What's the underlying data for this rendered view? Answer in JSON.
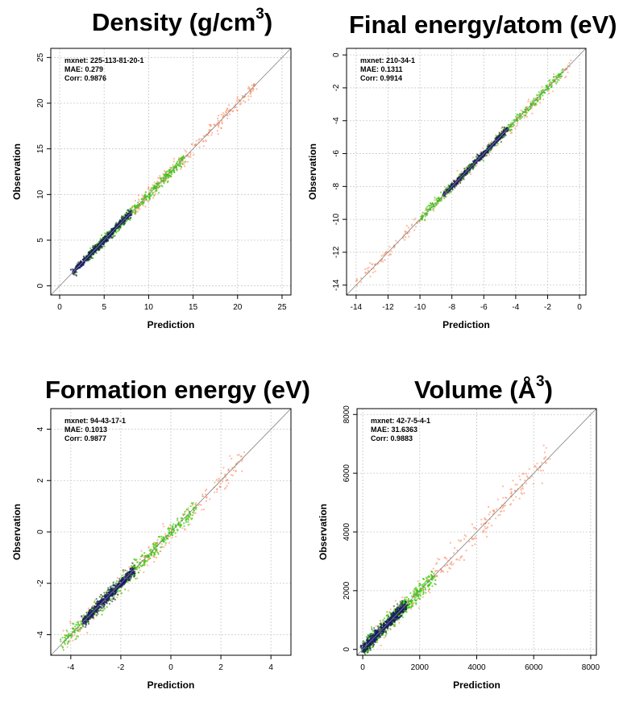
{
  "figure": {
    "panels": [
      {
        "title_main": "Density (g/cm",
        "title_sup": "3",
        "title_tail": ")"
      },
      {
        "title_main": "Final energy/atom (eV)",
        "title_sup": "",
        "title_tail": ""
      },
      {
        "title_main": "Formation energy (eV)",
        "title_sup": "",
        "title_tail": ""
      },
      {
        "title_main": "Volume (Å",
        "title_sup": "3",
        "title_tail": ")"
      }
    ]
  },
  "colors": {
    "density_dense": "#1a1a6e",
    "mid": "#0a3a0a",
    "green": "#33cc00",
    "orange": "#ff7f50",
    "grid": "#c8c8c8",
    "diagonal": "#808080"
  },
  "chart_data": [
    {
      "type": "scatter",
      "title": "Density (g/cm3)",
      "xlabel": "Prediction",
      "ylabel": "Observation",
      "xlim": [
        -1,
        26
      ],
      "ylim": [
        -1,
        26
      ],
      "xticks": [
        0,
        5,
        10,
        15,
        20,
        25
      ],
      "yticks": [
        0,
        5,
        10,
        15,
        20,
        25
      ],
      "grid": true,
      "diagonal_line": "y = x",
      "annotation": [
        "mxnet: 225-113-81-20-1",
        "MAE: 0.279",
        "Corr: 0.9876"
      ],
      "point_cloud": {
        "range": [
          0.5,
          23
        ],
        "core_range": [
          1.5,
          8
        ],
        "green_range": [
          3,
          14
        ],
        "orange_range": [
          8,
          22
        ],
        "spread": 0.025
      }
    },
    {
      "type": "scatter",
      "title": "Final energy/atom (eV)",
      "xlabel": "Prediction",
      "ylabel": "Observation",
      "xlim": [
        -14.6,
        0.4
      ],
      "ylim": [
        -14.6,
        0.4
      ],
      "xticks": [
        -14,
        -12,
        -10,
        -8,
        -6,
        -4,
        -2,
        0
      ],
      "yticks": [
        -14,
        -12,
        -10,
        -8,
        -6,
        -4,
        -2,
        0
      ],
      "grid": true,
      "diagonal_line": "y = x",
      "annotation": [
        "mxnet: 210-34-1",
        "MAE: 0.1311",
        "Corr: 0.9914"
      ],
      "point_cloud": {
        "range": [
          -14,
          0
        ],
        "core_range": [
          -8.5,
          -4.5
        ],
        "green_range": [
          -10,
          -1
        ],
        "orange_range": [
          -14,
          -0.5
        ],
        "spread": 0.02
      }
    },
    {
      "type": "scatter",
      "title": "Formation energy (eV)",
      "xlabel": "Prediction",
      "ylabel": "Observation",
      "xlim": [
        -4.8,
        4.8
      ],
      "ylim": [
        -4.8,
        4.8
      ],
      "xticks": [
        -4,
        -2,
        0,
        2,
        4
      ],
      "yticks": [
        -4,
        -2,
        0,
        2,
        4
      ],
      "grid": true,
      "diagonal_line": "y = x",
      "annotation": [
        "mxnet: 94-43-17-1",
        "MAE: 0.1013",
        "Corr: 0.9877"
      ],
      "point_cloud": {
        "range": [
          -4.5,
          3
        ],
        "core_range": [
          -3.5,
          -1.5
        ],
        "green_range": [
          -4.4,
          1
        ],
        "orange_range": [
          -4.4,
          3
        ],
        "spread": 0.035
      }
    },
    {
      "type": "scatter",
      "title": "Volume (Å3)",
      "xlabel": "Prediction",
      "ylabel": "Observation",
      "xlim": [
        -200,
        8200
      ],
      "ylim": [
        -200,
        8200
      ],
      "xticks": [
        0,
        2000,
        4000,
        6000,
        8000
      ],
      "yticks": [
        0,
        2000,
        4000,
        6000,
        8000
      ],
      "grid": true,
      "diagonal_line": "y = x",
      "annotation": [
        "mxnet: 42-7-5-4-1",
        "MAE: 31.6363",
        "Corr: 0.9883"
      ],
      "point_cloud": {
        "range": [
          0,
          7500
        ],
        "core_range": [
          0,
          1500
        ],
        "green_range": [
          0,
          2500
        ],
        "orange_range": [
          500,
          6500
        ],
        "spread": 0.04
      }
    }
  ]
}
